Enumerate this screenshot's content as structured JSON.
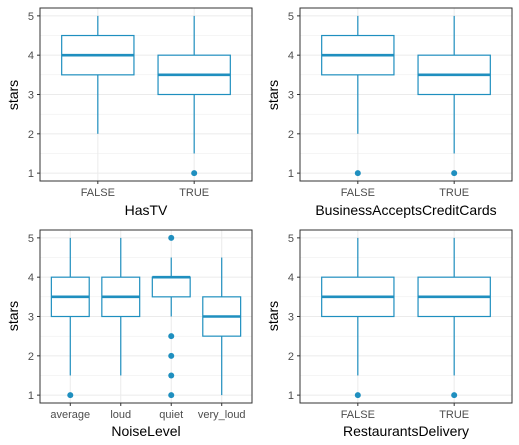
{
  "theme": {
    "box_color": "#1f8fbf",
    "grid_color": "#ebebeb",
    "panel_border": "#333333"
  },
  "chart_data": [
    {
      "type": "boxplot",
      "xlabel": "HasTV",
      "ylabel": "stars",
      "ylim": [
        1,
        5
      ],
      "yticks": [
        1,
        2,
        3,
        4,
        5
      ],
      "grid": true,
      "categories": [
        "FALSE",
        "TRUE"
      ],
      "boxes": [
        {
          "q1": 3.5,
          "median": 4.0,
          "q3": 4.5,
          "whisker_low": 2.0,
          "whisker_high": 5.0,
          "outliers": []
        },
        {
          "q1": 3.0,
          "median": 3.5,
          "q3": 4.0,
          "whisker_low": 1.5,
          "whisker_high": 5.0,
          "outliers": [
            1.0
          ]
        }
      ]
    },
    {
      "type": "boxplot",
      "xlabel": "BusinessAcceptsCreditCards",
      "ylabel": "stars",
      "ylim": [
        1,
        5
      ],
      "yticks": [
        1,
        2,
        3,
        4,
        5
      ],
      "grid": true,
      "categories": [
        "FALSE",
        "TRUE"
      ],
      "boxes": [
        {
          "q1": 3.5,
          "median": 4.0,
          "q3": 4.5,
          "whisker_low": 2.0,
          "whisker_high": 5.0,
          "outliers": [
            1.0
          ]
        },
        {
          "q1": 3.0,
          "median": 3.5,
          "q3": 4.0,
          "whisker_low": 1.5,
          "whisker_high": 5.0,
          "outliers": [
            1.0
          ]
        }
      ]
    },
    {
      "type": "boxplot",
      "xlabel": "NoiseLevel",
      "ylabel": "stars",
      "ylim": [
        1,
        5
      ],
      "yticks": [
        1,
        2,
        3,
        4,
        5
      ],
      "grid": true,
      "categories": [
        "average",
        "loud",
        "quiet",
        "very_loud"
      ],
      "boxes": [
        {
          "q1": 3.0,
          "median": 3.5,
          "q3": 4.0,
          "whisker_low": 1.5,
          "whisker_high": 5.0,
          "outliers": [
            1.0
          ]
        },
        {
          "q1": 3.0,
          "median": 3.5,
          "q3": 4.0,
          "whisker_low": 1.5,
          "whisker_high": 5.0,
          "outliers": []
        },
        {
          "q1": 3.5,
          "median": 4.0,
          "q3": 4.0,
          "whisker_low": 3.0,
          "whisker_high": 4.5,
          "outliers": [
            5.0,
            2.5,
            2.0,
            1.5,
            1.0
          ]
        },
        {
          "q1": 2.5,
          "median": 3.0,
          "q3": 3.5,
          "whisker_low": 1.0,
          "whisker_high": 4.5,
          "outliers": []
        }
      ]
    },
    {
      "type": "boxplot",
      "xlabel": "RestaurantsDelivery",
      "ylabel": "stars",
      "ylim": [
        1,
        5
      ],
      "yticks": [
        1,
        2,
        3,
        4,
        5
      ],
      "grid": true,
      "categories": [
        "FALSE",
        "TRUE"
      ],
      "boxes": [
        {
          "q1": 3.0,
          "median": 3.5,
          "q3": 4.0,
          "whisker_low": 1.5,
          "whisker_high": 5.0,
          "outliers": [
            1.0
          ]
        },
        {
          "q1": 3.0,
          "median": 3.5,
          "q3": 4.0,
          "whisker_low": 1.5,
          "whisker_high": 5.0,
          "outliers": [
            1.0
          ]
        }
      ]
    }
  ]
}
